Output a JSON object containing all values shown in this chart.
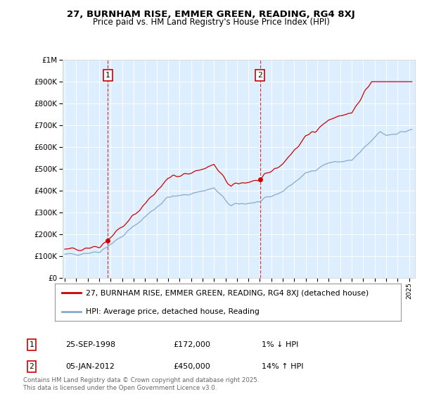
{
  "title": "27, BURNHAM RISE, EMMER GREEN, READING, RG4 8XJ",
  "subtitle": "Price paid vs. HM Land Registry's House Price Index (HPI)",
  "legend_line1": "27, BURNHAM RISE, EMMER GREEN, READING, RG4 8XJ (detached house)",
  "legend_line2": "HPI: Average price, detached house, Reading",
  "annotation1_date": "25-SEP-1998",
  "annotation1_price": "£172,000",
  "annotation1_hpi": "1% ↓ HPI",
  "annotation2_date": "05-JAN-2012",
  "annotation2_price": "£450,000",
  "annotation2_hpi": "14% ↑ HPI",
  "footer": "Contains HM Land Registry data © Crown copyright and database right 2025.\nThis data is licensed under the Open Government Licence v3.0.",
  "vline1_year": 1998.75,
  "vline2_year": 2012.02,
  "sale1_year": 1998.75,
  "sale1_price": 172000,
  "sale2_year": 2012.02,
  "sale2_price": 450000,
  "red_color": "#cc0000",
  "blue_color": "#88aacc",
  "background_color": "#ddeeff",
  "ylim": [
    0,
    1000000
  ],
  "xlim_start": 1994.8,
  "xlim_end": 2025.5
}
